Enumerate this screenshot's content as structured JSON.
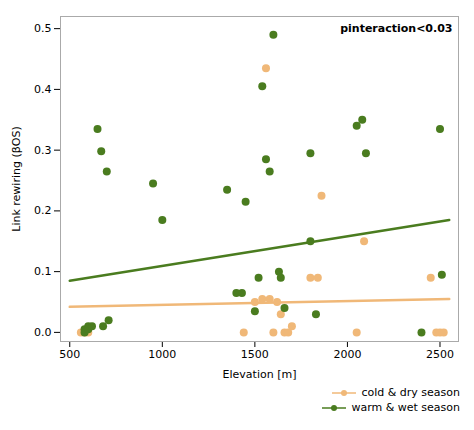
{
  "chart_data": {
    "type": "scatter",
    "xlabel": "Elevation [m]",
    "ylabel": "Link rewiring (βOS)",
    "annotation": "pinteraction<0.03",
    "xlim": [
      450,
      2600
    ],
    "ylim": [
      -0.015,
      0.52
    ],
    "xticks": [
      500,
      1000,
      1500,
      2000,
      2500
    ],
    "yticks": [
      {
        "value": 0.0,
        "label": "0.0"
      },
      0.1,
      0.2,
      0.3,
      0.4,
      0.5
    ],
    "legend": "bottom",
    "series": [
      {
        "name": "cold & dry season",
        "color": "#f0b878",
        "x": [
          560,
          580,
          600,
          1440,
          1500,
          1540,
          1560,
          1580,
          1600,
          1620,
          1640,
          1660,
          1680,
          1700,
          1800,
          1840,
          1860,
          2050,
          2090,
          2450,
          2480,
          2500,
          2520
        ],
        "values": [
          0.0,
          0.0,
          0.0,
          0.0,
          0.05,
          0.055,
          0.435,
          0.055,
          0.0,
          0.05,
          0.03,
          0.0,
          0.0,
          0.01,
          0.09,
          0.09,
          0.225,
          0.0,
          0.15,
          0.09,
          0.0,
          0.0,
          0.0
        ],
        "trend_x": [
          500,
          2550
        ],
        "trend_values": [
          0.042,
          0.055
        ]
      },
      {
        "name": "warm & wet season",
        "color": "#4a7c1f",
        "x": [
          580,
          600,
          650,
          670,
          700,
          950,
          1350,
          1430,
          1450,
          1500,
          1540,
          1560,
          1580,
          1600,
          1630,
          1660,
          1800,
          2050,
          2080,
          2400,
          2500,
          580,
          600,
          620,
          680,
          710,
          1000,
          1400,
          1520,
          1640,
          1800,
          1830,
          2100,
          2510
        ],
        "values": [
          0.005,
          0.01,
          0.335,
          0.298,
          0.265,
          0.245,
          0.235,
          0.065,
          0.215,
          0.035,
          0.405,
          0.285,
          0.265,
          0.49,
          0.1,
          0.04,
          0.15,
          0.34,
          0.35,
          0.0,
          0.335,
          0.0,
          0.005,
          0.01,
          0.01,
          0.02,
          0.185,
          0.065,
          0.09,
          0.09,
          0.295,
          0.03,
          0.295,
          0.095
        ],
        "trend_x": [
          500,
          2550
        ],
        "trend_values": [
          0.085,
          0.185
        ]
      }
    ]
  }
}
